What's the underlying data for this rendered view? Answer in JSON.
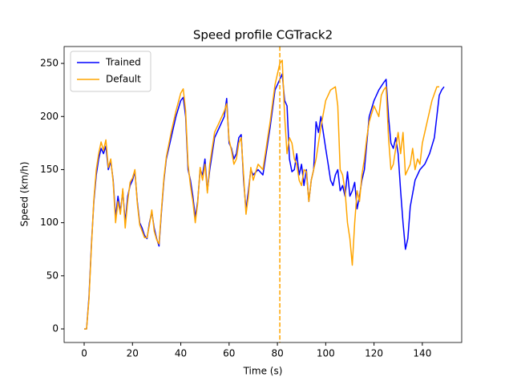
{
  "chart_data": {
    "type": "line",
    "title": "Speed profile CGTrack2",
    "x_label": "Time (s)",
    "y_label": "Speed (km/h)",
    "xlim": [
      -8.3,
      156.3
    ],
    "ylim": [
      -12.8,
      265.9
    ],
    "xticks": [
      0,
      20,
      40,
      60,
      80,
      100,
      120,
      140
    ],
    "yticks": [
      0,
      50,
      100,
      150,
      200,
      250
    ],
    "legend": "upper left",
    "vline": {
      "x": 81,
      "color": "#ffa500"
    },
    "series": [
      {
        "name": "Trained",
        "color": "#0000ff",
        "x": [
          0,
          1,
          2,
          3,
          4,
          5,
          6,
          7,
          8,
          9,
          10,
          11,
          12,
          13,
          14,
          15,
          16,
          17,
          18,
          19,
          20,
          21,
          22,
          23,
          24,
          25,
          26,
          27,
          28,
          29,
          30,
          31,
          32,
          33,
          34,
          36,
          38,
          40,
          41,
          42,
          43,
          44,
          45,
          46,
          47,
          48,
          49,
          50,
          51,
          52,
          54,
          56,
          58,
          59,
          60,
          61,
          62,
          63,
          64,
          65,
          66,
          67,
          68,
          69,
          70,
          72,
          74,
          75,
          77,
          79,
          81,
          82,
          83,
          84,
          85,
          86,
          87,
          88,
          89,
          90,
          91,
          92,
          93,
          94,
          95,
          96,
          97,
          98,
          99,
          100,
          101,
          102,
          103,
          104,
          105,
          106,
          107,
          108,
          109,
          110,
          111,
          112,
          113,
          114,
          115,
          116,
          117,
          118,
          120,
          122,
          124,
          125,
          126,
          127,
          128,
          129,
          130,
          131,
          132,
          133,
          134,
          135,
          137,
          139,
          141,
          143,
          145,
          147,
          148,
          149
        ],
        "values": [
          0,
          0,
          30,
          80,
          120,
          145,
          160,
          170,
          165,
          172,
          150,
          158,
          140,
          105,
          125,
          110,
          130,
          100,
          125,
          135,
          140,
          148,
          120,
          100,
          95,
          88,
          85,
          100,
          110,
          95,
          85,
          78,
          110,
          140,
          160,
          180,
          200,
          215,
          218,
          200,
          150,
          140,
          125,
          105,
          120,
          150,
          145,
          160,
          130,
          150,
          180,
          190,
          200,
          217,
          175,
          170,
          160,
          165,
          180,
          183,
          140,
          112,
          130,
          150,
          145,
          150,
          145,
          160,
          190,
          225,
          235,
          240,
          215,
          210,
          160,
          148,
          150,
          165,
          145,
          155,
          135,
          150,
          120,
          140,
          150,
          195,
          185,
          200,
          185,
          170,
          155,
          140,
          135,
          145,
          150,
          130,
          135,
          125,
          148,
          125,
          130,
          138,
          113,
          125,
          140,
          150,
          175,
          200,
          215,
          225,
          232,
          235,
          200,
          175,
          170,
          180,
          165,
          130,
          100,
          75,
          85,
          115,
          140,
          150,
          155,
          165,
          180,
          220,
          225,
          228
        ]
      },
      {
        "name": "Default",
        "color": "#ffa500",
        "x": [
          0,
          1,
          2,
          3,
          4,
          5,
          6,
          7,
          8,
          9,
          10,
          11,
          12,
          13,
          14,
          15,
          16,
          17,
          18,
          19,
          20,
          21,
          22,
          23,
          24,
          25,
          26,
          27,
          28,
          29,
          30,
          31,
          32,
          33,
          34,
          36,
          38,
          40,
          41,
          42,
          43,
          44,
          45,
          46,
          47,
          48,
          49,
          50,
          51,
          52,
          54,
          56,
          58,
          59,
          60,
          61,
          62,
          63,
          64,
          65,
          66,
          67,
          68,
          69,
          70,
          72,
          74,
          75,
          77,
          79,
          81,
          82,
          83,
          84,
          85,
          86,
          87,
          88,
          89,
          90,
          91,
          92,
          93,
          94,
          95,
          96,
          98,
          100,
          102,
          104,
          105,
          106,
          107,
          108,
          109,
          110,
          111,
          112,
          113,
          114,
          115,
          116,
          117,
          118,
          120,
          121,
          122,
          123,
          124,
          125,
          126,
          127,
          128,
          130,
          131,
          132,
          133,
          134,
          135,
          136,
          137,
          138,
          139,
          140,
          142,
          144,
          146,
          147
        ],
        "values": [
          0,
          0,
          28,
          78,
          122,
          150,
          165,
          176,
          168,
          178,
          152,
          160,
          138,
          100,
          120,
          108,
          132,
          95,
          120,
          138,
          142,
          150,
          118,
          98,
          92,
          86,
          86,
          98,
          112,
          92,
          84,
          80,
          112,
          142,
          162,
          185,
          205,
          222,
          226,
          205,
          155,
          135,
          120,
          100,
          118,
          152,
          140,
          155,
          128,
          155,
          185,
          195,
          205,
          212,
          178,
          168,
          155,
          160,
          175,
          180,
          145,
          108,
          125,
          152,
          140,
          155,
          150,
          165,
          195,
          230,
          250,
          253,
          200,
          165,
          180,
          175,
          160,
          155,
          140,
          135,
          150,
          148,
          120,
          140,
          150,
          160,
          190,
          215,
          225,
          228,
          210,
          150,
          145,
          130,
          100,
          85,
          60,
          100,
          130,
          120,
          145,
          160,
          180,
          195,
          210,
          205,
          200,
          220,
          225,
          228,
          180,
          150,
          155,
          185,
          165,
          185,
          145,
          150,
          155,
          170,
          150,
          160,
          155,
          175,
          195,
          215,
          228,
          228
        ]
      }
    ]
  }
}
